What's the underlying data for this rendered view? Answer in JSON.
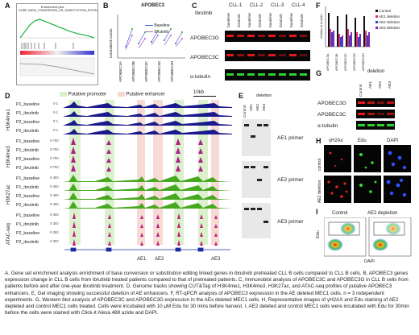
{
  "panels": {
    "A": {
      "label": "A",
      "gsea_title": "Enrichment plot:",
      "gsea_subtitle": "GOBP_BASE_CONVERSION_OR_SUBSTITUTION_EDITIN"
    },
    "B": {
      "label": "B",
      "title": "APOBEC3",
      "legend": [
        "Baseline",
        "Ibrutinib"
      ],
      "ylabel": "normalized counts",
      "categories": [
        "APOBEC3A",
        "APOBEC3B",
        "APOBEC3C",
        "APOBEC3G",
        "APOBEC3H"
      ]
    },
    "C": {
      "label": "C",
      "header": "Ibrutinib",
      "patients": [
        "CLL-1",
        "CLL-2",
        "CLL-3",
        "CLL-4"
      ],
      "lanes": [
        "baseline",
        "ibrutinib",
        "baseline",
        "ibrutinib",
        "baseline",
        "ibrutinib",
        "baseline",
        "ibrutinib"
      ],
      "rows": [
        "APOBEC3G",
        "APOBEC3C",
        "α-tubulin"
      ]
    },
    "D": {
      "label": "D",
      "promoter_legend": "Putative promoter",
      "enhancer_legend": "Putative enhancer",
      "scale": "10kb",
      "groups": [
        {
          "name": "H3K4me1",
          "tracks": [
            "P1_baseline",
            "P1_ibrutinib",
            "P2_baseline",
            "P2_ibrutinib"
          ],
          "ranges": [
            "0-1",
            "0-1",
            "0-1",
            "0-1"
          ]
        },
        {
          "name": "H3K4me3",
          "tracks": [
            "P1_baseline",
            "P1_ibrutinib",
            "P2_baseline",
            "P2_ibrutinib"
          ],
          "ranges": [
            "0-750",
            "0-750",
            "0-750",
            "0-750"
          ]
        },
        {
          "name": "H3K27ac",
          "tracks": [
            "P1_baseline",
            "P1_ibrutinib",
            "P2_baseline",
            "P2_ibrutinib"
          ],
          "ranges": [
            "0-450",
            "0-450",
            "0-450",
            "0-450"
          ]
        },
        {
          "name": "ATAC-seq",
          "tracks": [
            "P1_baseline",
            "P1_ibrutinib",
            "P2_baseline",
            "P2_ibrutinib"
          ],
          "ranges": [
            "0-350",
            "0-350",
            "0-350",
            "0-350"
          ]
        }
      ],
      "enhancers": [
        "AE1",
        "AE2",
        "AE3"
      ]
    },
    "E": {
      "label": "E",
      "header": "deletion",
      "lanes": [
        "Control",
        "AE1",
        "AE2",
        "AE3"
      ],
      "primers": [
        "AE1 primer",
        "AE2 primer",
        "AE3 primer"
      ]
    },
    "F": {
      "label": "F",
      "ylabel": "relative to β-actin",
      "legend": [
        "Control",
        "AE1 deletion",
        "AE2 deletion",
        "AE3 deletion"
      ],
      "legend_colors": [
        "#111111",
        "#e0307a",
        "#2b48c8",
        "#7b2cb5"
      ],
      "categories": [
        "APOBEC3A",
        "APOBEC3B",
        "APOBEC3C",
        "APOBEC3G",
        "APOBEC3H"
      ]
    },
    "G": {
      "label": "G",
      "header": "deletion",
      "lanes": [
        "Control",
        "AE1",
        "AE2",
        "AE3"
      ],
      "rows": [
        "APOBEC3G",
        "APOBEC3C",
        "α-tubulin"
      ]
    },
    "H": {
      "label": "H",
      "columns": [
        "γH2Ax",
        "Edu",
        "DAPI"
      ],
      "rows": [
        "control",
        "AE2 deletion"
      ]
    },
    "I": {
      "label": "I",
      "titles": [
        "Control",
        "AE2 depletion"
      ],
      "xlabel": "DAPI",
      "ylabel": "Edu"
    }
  },
  "caption": [
    "A, Gene set enrichment analysis enrichment of base conversion or substitution editing linked genes in ibrutinib pretreated CLL B cells compared to CLL B cells. B, APOBEC3 genes expression change in CLL B cells from ibrutinib treated patients compared to that of pretreated patients. C, Immunoblot analysis of APOBEC3C and APOBEC3G in CLL B cells from patients before and after one-year ibrutinib treatment. D, Genome tracks showing CUT&Tag of H3K4me1, H3K4me3, H3K27ac, and ATAC-seq profiles of putative APOBEC3 enhancers. E, Gel imaging showing successful deletion of AE enhancers. F, RT-qPCR analysis of APOBEC3 expression in the AE deleted MEC1 cells. n = 3 independent experiments. G, Western blot analysis of APOBEC3C and APOBEC3G expression in the AEs deleted MEC1 cells. H, Representative images of γH2AX and Edu staining of AE2 depleted and control MEC1 cells treated. Cells were incubated with 10 μM Edu for 30 mins before harvest. I, AE2 deleted and control MEC1 cells were incubated with Edu for 30min before the cells were stained with Click-it Alexa 488 azide and DAPI."
  ],
  "colors": {
    "baseline": "#3a5fcd",
    "ibrutinib": "#b05fc8",
    "h3k4me1": "#1a1a8c",
    "h3k4me3": "#b0208a",
    "h3k27ac": "#48a820",
    "atac": "#c0207a",
    "promoter": "#d8efc8",
    "enhancer": "#f8d6d0"
  }
}
